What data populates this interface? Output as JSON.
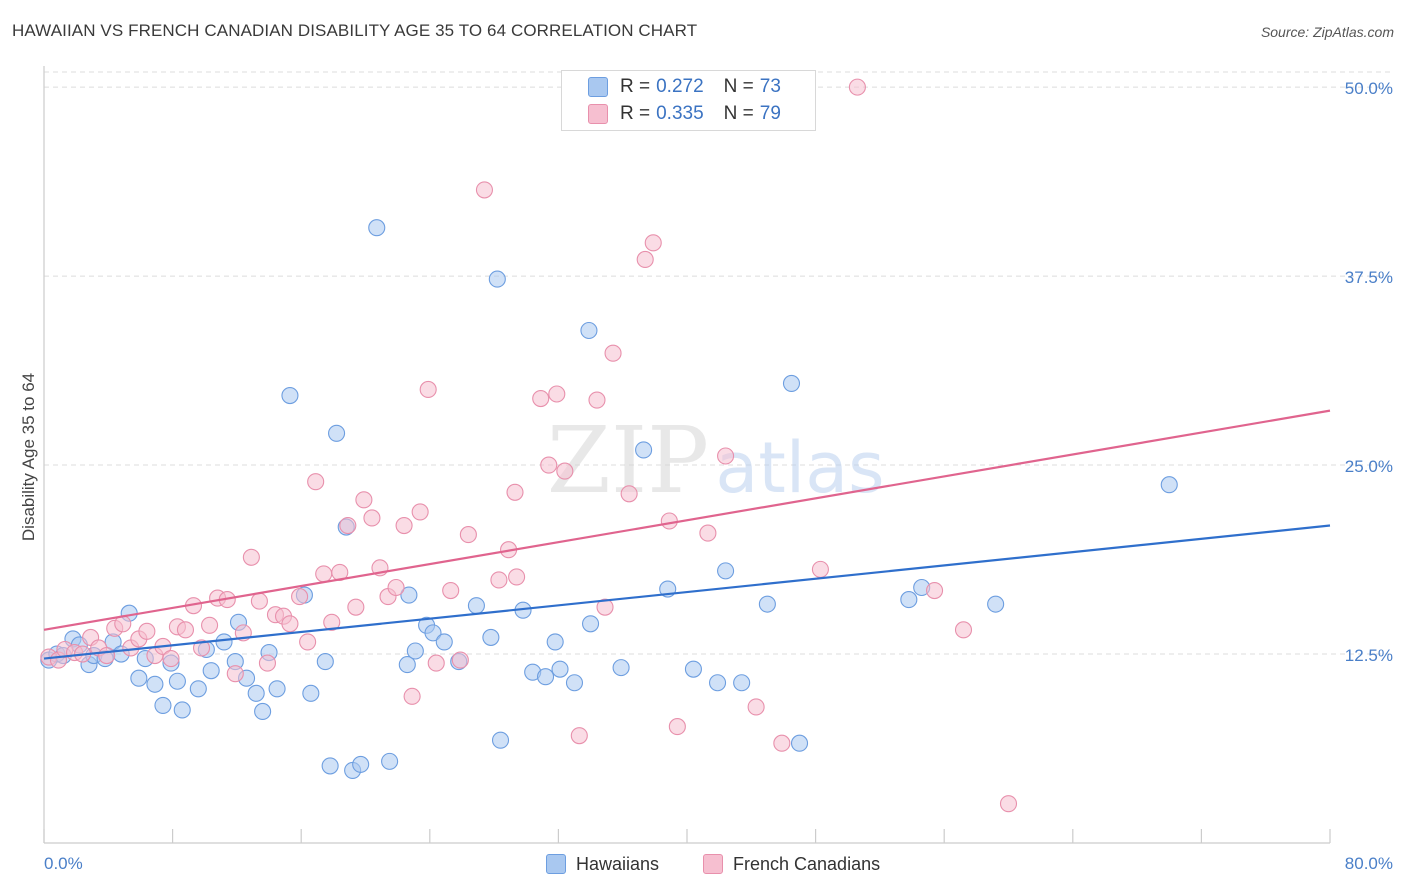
{
  "header": {
    "title": "HAWAIIAN VS FRENCH CANADIAN DISABILITY AGE 35 TO 64 CORRELATION CHART",
    "source": "Source: ZipAtlas.com"
  },
  "watermark": {
    "part1": "ZIP",
    "part2": "atlas"
  },
  "legend": {
    "rows": [
      {
        "r_label": "R = ",
        "r_value": "0.272",
        "n_label": "N = ",
        "n_value": "73"
      },
      {
        "r_label": "R = ",
        "r_value": "0.335",
        "n_label": "N = ",
        "n_value": "79"
      }
    ]
  },
  "bottom_legend": {
    "series_a": "Hawaiians",
    "series_b": "French Canadians"
  },
  "colors": {
    "blue_fill": "#a9c8f0",
    "blue_stroke": "#6d9ee0",
    "blue_line": "#2f6fcc",
    "pink_fill": "#f6bfd0",
    "pink_stroke": "#e890ac",
    "pink_line": "#e0648e",
    "tick_label": "#4a7fc8",
    "grid": "#dcdcdc"
  },
  "chart_data": {
    "type": "scatter",
    "title": "HAWAIIAN VS FRENCH CANADIAN DISABILITY AGE 35 TO 64 CORRELATION CHART",
    "xlabel": "",
    "ylabel": "Disability Age 35 to 64",
    "xlim": [
      0,
      80
    ],
    "ylim": [
      0,
      51
    ],
    "x_tick_labels": [
      "0.0%",
      "80.0%"
    ],
    "y_ticks": [
      12.5,
      25.0,
      37.5,
      50.0
    ],
    "y_tick_labels": [
      "12.5%",
      "25.0%",
      "37.5%",
      "50.0%"
    ],
    "grid": true,
    "legend_position": "top-center",
    "series": [
      {
        "name": "Hawaiians",
        "color": "#a9c8f0",
        "r": 0.272,
        "n": 73,
        "trend": [
          [
            0,
            12.2
          ],
          [
            80,
            21.0
          ]
        ],
        "points": [
          [
            0.3,
            12.1
          ],
          [
            0.8,
            12.5
          ],
          [
            1.2,
            12.4
          ],
          [
            1.8,
            13.5
          ],
          [
            2.2,
            13.1
          ],
          [
            2.8,
            11.8
          ],
          [
            3.1,
            12.4
          ],
          [
            3.8,
            12.2
          ],
          [
            4.3,
            13.3
          ],
          [
            4.8,
            12.5
          ],
          [
            5.3,
            15.2
          ],
          [
            5.9,
            10.9
          ],
          [
            6.3,
            12.2
          ],
          [
            6.9,
            10.5
          ],
          [
            7.4,
            9.1
          ],
          [
            7.9,
            11.9
          ],
          [
            8.3,
            10.7
          ],
          [
            8.6,
            8.8
          ],
          [
            9.6,
            10.2
          ],
          [
            10.1,
            12.8
          ],
          [
            10.4,
            11.4
          ],
          [
            11.2,
            13.3
          ],
          [
            11.9,
            12.0
          ],
          [
            12.1,
            14.6
          ],
          [
            12.6,
            10.9
          ],
          [
            13.2,
            9.9
          ],
          [
            13.6,
            8.7
          ],
          [
            14.0,
            12.6
          ],
          [
            14.5,
            10.2
          ],
          [
            15.3,
            29.6
          ],
          [
            16.2,
            16.4
          ],
          [
            16.6,
            9.9
          ],
          [
            17.5,
            12.0
          ],
          [
            17.8,
            5.1
          ],
          [
            18.2,
            27.1
          ],
          [
            18.8,
            20.9
          ],
          [
            19.2,
            4.8
          ],
          [
            19.7,
            5.2
          ],
          [
            20.7,
            40.7
          ],
          [
            21.5,
            5.4
          ],
          [
            22.6,
            11.8
          ],
          [
            22.7,
            16.4
          ],
          [
            23.1,
            12.7
          ],
          [
            23.8,
            14.4
          ],
          [
            24.2,
            13.9
          ],
          [
            24.9,
            13.3
          ],
          [
            25.8,
            12.0
          ],
          [
            26.9,
            15.7
          ],
          [
            27.8,
            13.6
          ],
          [
            28.2,
            37.3
          ],
          [
            28.4,
            6.8
          ],
          [
            29.8,
            15.4
          ],
          [
            30.4,
            11.3
          ],
          [
            31.2,
            11.0
          ],
          [
            31.8,
            13.3
          ],
          [
            32.1,
            11.5
          ],
          [
            33.0,
            10.6
          ],
          [
            33.9,
            33.9
          ],
          [
            34.0,
            14.5
          ],
          [
            35.9,
            11.6
          ],
          [
            37.3,
            26.0
          ],
          [
            38.8,
            16.8
          ],
          [
            40.4,
            11.5
          ],
          [
            41.9,
            10.6
          ],
          [
            42.4,
            18.0
          ],
          [
            43.4,
            10.6
          ],
          [
            45.0,
            15.8
          ],
          [
            46.5,
            30.4
          ],
          [
            47.0,
            6.6
          ],
          [
            53.8,
            16.1
          ],
          [
            54.6,
            16.9
          ],
          [
            59.2,
            15.8
          ],
          [
            70.0,
            23.7
          ]
        ]
      },
      {
        "name": "French Canadians",
        "color": "#f6bfd0",
        "r": 0.335,
        "n": 79,
        "trend": [
          [
            0,
            14.1
          ],
          [
            80,
            28.6
          ]
        ],
        "points": [
          [
            0.3,
            12.3
          ],
          [
            0.9,
            12.1
          ],
          [
            1.3,
            12.8
          ],
          [
            1.9,
            12.6
          ],
          [
            2.4,
            12.5
          ],
          [
            2.9,
            13.6
          ],
          [
            3.4,
            12.9
          ],
          [
            3.9,
            12.4
          ],
          [
            4.4,
            14.2
          ],
          [
            4.9,
            14.5
          ],
          [
            5.4,
            12.9
          ],
          [
            5.9,
            13.5
          ],
          [
            6.4,
            14.0
          ],
          [
            6.9,
            12.4
          ],
          [
            7.4,
            13.0
          ],
          [
            7.9,
            12.2
          ],
          [
            8.3,
            14.3
          ],
          [
            8.8,
            14.1
          ],
          [
            9.3,
            15.7
          ],
          [
            9.8,
            12.9
          ],
          [
            10.3,
            14.4
          ],
          [
            10.8,
            16.2
          ],
          [
            11.4,
            16.1
          ],
          [
            11.9,
            11.2
          ],
          [
            12.4,
            13.9
          ],
          [
            12.9,
            18.9
          ],
          [
            13.4,
            16.0
          ],
          [
            13.9,
            11.9
          ],
          [
            14.4,
            15.1
          ],
          [
            14.9,
            15.0
          ],
          [
            15.3,
            14.5
          ],
          [
            15.9,
            16.3
          ],
          [
            16.4,
            13.3
          ],
          [
            16.9,
            23.9
          ],
          [
            17.4,
            17.8
          ],
          [
            17.9,
            14.6
          ],
          [
            18.4,
            17.9
          ],
          [
            18.9,
            21.0
          ],
          [
            19.4,
            15.6
          ],
          [
            19.9,
            22.7
          ],
          [
            20.4,
            21.5
          ],
          [
            20.9,
            18.2
          ],
          [
            21.4,
            16.3
          ],
          [
            21.9,
            16.9
          ],
          [
            22.4,
            21.0
          ],
          [
            22.9,
            9.7
          ],
          [
            23.4,
            21.9
          ],
          [
            23.9,
            30.0
          ],
          [
            24.4,
            11.9
          ],
          [
            25.3,
            16.7
          ],
          [
            25.9,
            12.1
          ],
          [
            26.4,
            20.4
          ],
          [
            27.4,
            43.2
          ],
          [
            28.3,
            17.4
          ],
          [
            28.9,
            19.4
          ],
          [
            29.3,
            23.2
          ],
          [
            29.4,
            17.6
          ],
          [
            30.9,
            29.4
          ],
          [
            31.4,
            25.0
          ],
          [
            31.9,
            29.7
          ],
          [
            32.4,
            24.6
          ],
          [
            33.3,
            7.1
          ],
          [
            34.4,
            29.3
          ],
          [
            34.9,
            15.6
          ],
          [
            35.4,
            32.4
          ],
          [
            36.4,
            23.1
          ],
          [
            37.4,
            38.6
          ],
          [
            37.9,
            39.7
          ],
          [
            38.9,
            21.3
          ],
          [
            39.4,
            7.7
          ],
          [
            41.3,
            20.5
          ],
          [
            42.4,
            25.6
          ],
          [
            44.3,
            9.0
          ],
          [
            45.9,
            6.6
          ],
          [
            48.3,
            18.1
          ],
          [
            50.6,
            50.0
          ],
          [
            55.4,
            16.7
          ],
          [
            57.2,
            14.1
          ],
          [
            60.0,
            2.6
          ]
        ]
      }
    ]
  }
}
